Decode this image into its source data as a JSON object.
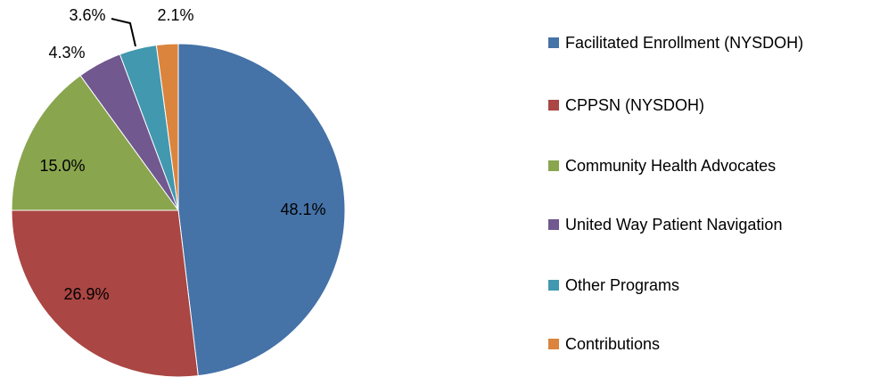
{
  "chart_data": {
    "type": "pie",
    "categories": [
      "Facilitated Enrollment (NYSDOH)",
      "CPPSN (NYSDOH)",
      "Community Health Advocates",
      "United Way Patient Navigation",
      "Other Programs",
      "Contributions"
    ],
    "values": [
      48.1,
      26.9,
      15.0,
      4.3,
      3.6,
      2.1
    ],
    "value_labels": [
      "48.1%",
      "26.9%",
      "15.0%",
      "4.3%",
      "3.6%",
      "2.1%"
    ],
    "colors": [
      "#4572a7",
      "#aa4643",
      "#89a54e",
      "#71588f",
      "#4198af",
      "#db843d"
    ],
    "legend": "right"
  }
}
